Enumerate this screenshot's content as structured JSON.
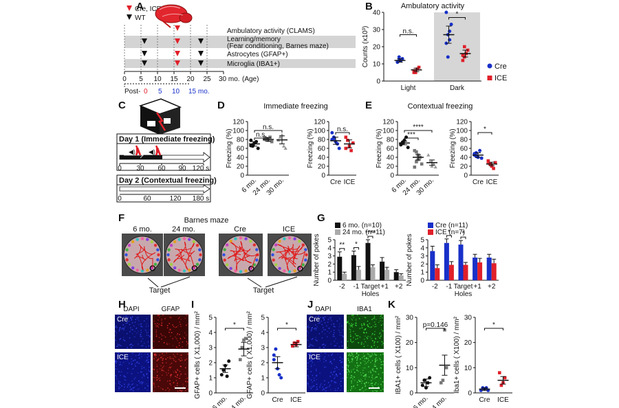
{
  "panel_letters": [
    "A",
    "B",
    "C",
    "D",
    "E",
    "F",
    "G",
    "H",
    "I",
    "J",
    "K"
  ],
  "panelA": {
    "legend_cre": "Cre, ICE",
    "legend_wt": "WT",
    "rows": [
      "Ambulatory activity (CLAMS)",
      "Learning/memory",
      "(Fear conditioning, Barnes maze)",
      "Astrocytes (GFAP+)",
      "Microglia (IBA1+)"
    ],
    "age_ticks": [
      "0",
      "5",
      "10",
      "15",
      "20",
      "25",
      "30 mo."
    ],
    "age_label": "(Age)",
    "post_label": "Post-",
    "post_ticks": [
      "0",
      "5",
      "10",
      "15 mo."
    ],
    "colors": {
      "cre": "#e0202a",
      "wt": "#111111",
      "shade": "#d4d4d4"
    }
  },
  "panelC": {
    "day1": "Day 1 (Immediate freezing)",
    "day1_ticks": [
      "0",
      "30",
      "60",
      "90",
      "120 s"
    ],
    "day2": "Day 2 (Contextual freezing)",
    "day2_ticks": [
      "0",
      "60",
      "120",
      "180 s"
    ]
  },
  "panelD": {
    "title": "Immediate freezing"
  },
  "panelE": {
    "title": "Contextual freezing"
  },
  "panelF": {
    "title": "Barnes maze",
    "labels": [
      "6 mo.",
      "24 mo.",
      "Cre",
      "ICE"
    ],
    "target": "Target"
  },
  "panelH": {
    "dapi": "DAPI",
    "gfap": "GFAP",
    "cre": "Cre",
    "ice": "ICE"
  },
  "panelJ": {
    "dapi": "DAPI",
    "iba1": "IBA1",
    "cre": "Cre",
    "ice": "ICE"
  },
  "legend_mice": {
    "cre": "Cre",
    "ice": "ICE"
  },
  "chart_data": [
    {
      "id": "B",
      "type": "scatter",
      "title": "Ambulatory activity",
      "ylabel": "Counts (x10³)",
      "ylim": [
        0,
        40
      ],
      "yticks": [
        0,
        10,
        20,
        30,
        40
      ],
      "categories": [
        "Light",
        "Dark"
      ],
      "shaded_category": "Dark",
      "series": [
        {
          "name": "Cre",
          "color": "#1830c8",
          "marker": "circle",
          "means": [
            12,
            27
          ],
          "sem": [
            1,
            5
          ],
          "points": [
            [
              11,
              12,
              12,
              13,
              11,
              14,
              12
            ],
            [
              22,
              27,
              29,
              33,
              40,
              14,
              24
            ]
          ]
        },
        {
          "name": "ICE",
          "color": "#e0202a",
          "marker": "square",
          "means": [
            6.5,
            16
          ],
          "sem": [
            1,
            2
          ],
          "points": [
            [
              5,
              6,
              7,
              8,
              6,
              5
            ],
            [
              12,
              14,
              16,
              18,
              15,
              20
            ]
          ]
        }
      ],
      "brackets": [
        {
          "label": "n.s."
        },
        {
          "label": "*"
        }
      ]
    },
    {
      "id": "D1",
      "type": "scatter",
      "ylabel": "Freezing (%)",
      "ylim": [
        0,
        120
      ],
      "yticks": [
        0,
        20,
        40,
        60,
        80,
        100,
        120
      ],
      "categories": [
        "6 mo.",
        "24 mo.",
        "30 mo."
      ],
      "means": [
        70,
        80,
        79
      ],
      "sem": [
        5,
        4,
        9
      ],
      "colors": [
        "#111",
        "#777",
        "#999"
      ],
      "points": [
        [
          66,
          68,
          72,
          75,
          60,
          78,
          65
        ],
        [
          80,
          82,
          78,
          85,
          75,
          84,
          79
        ],
        [
          78,
          85,
          90,
          65,
          60
        ]
      ],
      "brackets": [
        {
          "label": "n.s."
        },
        {
          "label": "n.s."
        }
      ]
    },
    {
      "id": "D2",
      "type": "scatter",
      "ylabel": "Freezing (%)",
      "ylim": [
        0,
        120
      ],
      "yticks": [
        0,
        20,
        40,
        60,
        80,
        100,
        120
      ],
      "categories": [
        "Cre",
        "ICE"
      ],
      "means": [
        77,
        70
      ],
      "sem": [
        8,
        9
      ],
      "colors": [
        "#1830c8",
        "#e0202a"
      ],
      "points": [
        [
          95,
          85,
          75,
          70,
          60,
          80,
          82
        ],
        [
          85,
          78,
          65,
          55,
          72,
          60
        ]
      ],
      "brackets": [
        {
          "label": "n.s."
        }
      ]
    },
    {
      "id": "E1",
      "type": "scatter",
      "ylabel": "Freezing (%)",
      "ylim": [
        0,
        120
      ],
      "yticks": [
        0,
        20,
        40,
        60,
        80,
        100,
        120
      ],
      "categories": [
        "6 mo.",
        "24 mo.",
        "30 mo."
      ],
      "means": [
        72,
        40,
        28
      ],
      "sem": [
        4,
        6,
        6
      ],
      "colors": [
        "#111",
        "#777",
        "#999"
      ],
      "points": [
        [
          70,
          72,
          78,
          85,
          62,
          68,
          74
        ],
        [
          55,
          52,
          45,
          40,
          25,
          18,
          30,
          35
        ],
        [
          45,
          30,
          20,
          25,
          18
        ]
      ],
      "brackets": [
        {
          "label": "***"
        },
        {
          "label": "****"
        }
      ]
    },
    {
      "id": "E2",
      "type": "scatter",
      "ylabel": "Freezing (%)",
      "ylim": [
        0,
        120
      ],
      "yticks": [
        0,
        20,
        40,
        60,
        80,
        100,
        120
      ],
      "categories": [
        "Cre",
        "ICE"
      ],
      "means": [
        45,
        25
      ],
      "sem": [
        5,
        4
      ],
      "colors": [
        "#1830c8",
        "#e0202a"
      ],
      "points": [
        [
          48,
          42,
          40,
          55,
          38,
          45,
          50
        ],
        [
          30,
          25,
          20,
          15,
          28,
          32
        ]
      ],
      "brackets": [
        {
          "label": "*"
        }
      ]
    },
    {
      "id": "G1",
      "type": "bar",
      "ylabel": "Number of pokes",
      "xlabel": "Holes",
      "ylim": [
        0,
        5
      ],
      "yticks": [
        0,
        1,
        2,
        3,
        4,
        5
      ],
      "categories": [
        "-2",
        "-1",
        "Target",
        "+1",
        "+2"
      ],
      "series": [
        {
          "name": "6 mo. (n=10)",
          "color": "#111111",
          "values": [
            2.9,
            3.1,
            4.6,
            2.3,
            1.0
          ],
          "sem": [
            0.6,
            0.5,
            0.4,
            0.5,
            0.3
          ]
        },
        {
          "name": "24 mo. (n=11)",
          "color": "#aaaaaa",
          "values": [
            0.8,
            1.3,
            1.6,
            1.3,
            0.6
          ],
          "sem": [
            0.2,
            0.4,
            0.3,
            0.3,
            0.2
          ]
        }
      ],
      "sig": [
        "**",
        "*",
        "****",
        "",
        ""
      ]
    },
    {
      "id": "G2",
      "type": "bar",
      "ylabel": "Number of pokes",
      "xlabel": "Holes",
      "ylim": [
        0,
        5
      ],
      "yticks": [
        0,
        1,
        2,
        3,
        4,
        5
      ],
      "categories": [
        "-2",
        "-1",
        "Target",
        "+1",
        "+2"
      ],
      "series": [
        {
          "name": "Cre (n=11)",
          "color": "#1830c8",
          "values": [
            3.6,
            4.6,
            4.4,
            2.8,
            2.8
          ],
          "sem": [
            0.6,
            0.5,
            0.5,
            0.4,
            0.4
          ]
        },
        {
          "name": "ICE (n=7)",
          "color": "#e0202a",
          "values": [
            1.5,
            1.9,
            1.9,
            2.2,
            2.1
          ],
          "sem": [
            0.4,
            0.4,
            0.3,
            0.5,
            0.5
          ]
        }
      ],
      "sig": [
        "",
        "*",
        "*",
        "",
        ""
      ]
    },
    {
      "id": "I1",
      "type": "scatter",
      "ylabel": "GFAP+ cells ( X1,000) / mm²",
      "ylim": [
        0,
        5
      ],
      "yticks": [
        0,
        1,
        2,
        3,
        4,
        5
      ],
      "categories": [
        "6 mo.",
        "24 mo."
      ],
      "means": [
        1.6,
        2.9
      ],
      "sem": [
        0.25,
        0.45
      ],
      "colors": [
        "#111",
        "#777"
      ],
      "points": [
        [
          1.2,
          1.5,
          1.8,
          1.1,
          2.1
        ],
        [
          2.2,
          3.0,
          3.5,
          3.6
        ]
      ],
      "brackets": [
        {
          "label": "*"
        }
      ]
    },
    {
      "id": "I2",
      "type": "scatter",
      "ylabel": "GFAP+ cells ( X1,000) / mm²",
      "ylim": [
        0,
        5
      ],
      "yticks": [
        0,
        1,
        2,
        3,
        4,
        5
      ],
      "categories": [
        "Cre",
        "ICE"
      ],
      "means": [
        2.0,
        3.2
      ],
      "sem": [
        0.4,
        0.15
      ],
      "colors": [
        "#1830c8",
        "#e0202a"
      ],
      "points": [
        [
          2.5,
          2.9,
          1.6,
          1.2,
          1.0,
          2.2
        ],
        [
          3.1,
          3.3,
          3.2,
          3.4
        ]
      ],
      "brackets": [
        {
          "label": "*"
        }
      ]
    },
    {
      "id": "K1",
      "type": "scatter",
      "ylabel": "IBA1+ cells ( X100) / mm²",
      "ylim": [
        0,
        30
      ],
      "yticks": [
        0,
        10,
        20,
        30
      ],
      "categories": [
        "6 mo.",
        "24 mo."
      ],
      "means": [
        4,
        11
      ],
      "sem": [
        1.5,
        4
      ],
      "colors": [
        "#111",
        "#777"
      ],
      "points": [
        [
          3,
          5,
          2,
          4,
          6
        ],
        [
          4,
          5,
          25,
          10
        ]
      ],
      "brackets": [
        {
          "label": "p=0.146"
        }
      ]
    },
    {
      "id": "K2",
      "type": "scatter",
      "ylabel": "Iba1+ cells ( X100) / mm²",
      "ylim": [
        0,
        30
      ],
      "yticks": [
        0,
        10,
        20,
        30
      ],
      "categories": [
        "Cre",
        "ICE"
      ],
      "means": [
        1.5,
        5
      ],
      "sem": [
        0.5,
        1.5
      ],
      "colors": [
        "#1830c8",
        "#e0202a"
      ],
      "points": [
        [
          1,
          2,
          1.5,
          2,
          1
        ],
        [
          8,
          3,
          4,
          6
        ]
      ],
      "brackets": [
        {
          "label": "*"
        }
      ]
    }
  ]
}
